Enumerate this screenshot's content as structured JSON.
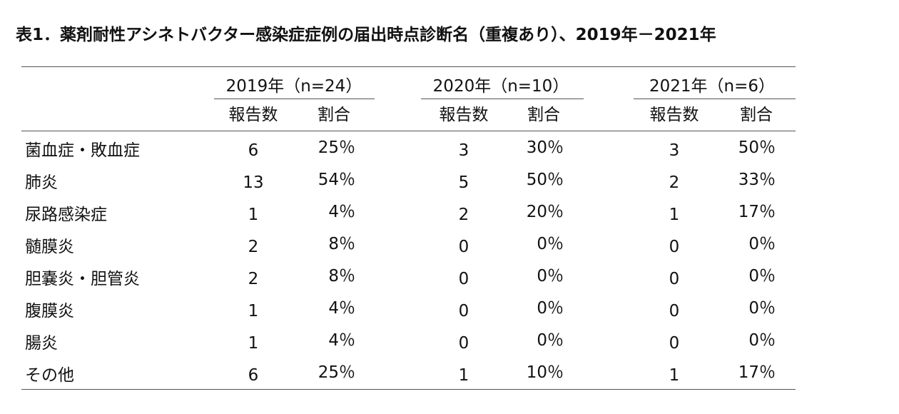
{
  "title": "表1．薬剤耐性アシネトバクター感染症症例の届出時点診断名（重複あり）、2019年－2021年",
  "table": {
    "groups": [
      {
        "label": "2019年（n=24）",
        "columns": [
          "報告数",
          "割合"
        ]
      },
      {
        "label": "2020年（n=10）",
        "columns": [
          "報告数",
          "割合"
        ]
      },
      {
        "label": "2021年（n=6）",
        "columns": [
          "報告数",
          "割合"
        ]
      }
    ],
    "rows": [
      {
        "label": "菌血症・敗血症",
        "cells": [
          6,
          "25％",
          3,
          "30％",
          3,
          "50％"
        ]
      },
      {
        "label": "肺炎",
        "cells": [
          13,
          "54％",
          5,
          "50％",
          2,
          "33％"
        ]
      },
      {
        "label": "尿路感染症",
        "cells": [
          1,
          "4％",
          2,
          "20％",
          1,
          "17％"
        ]
      },
      {
        "label": "髄膜炎",
        "cells": [
          2,
          "8％",
          0,
          "0％",
          0,
          "0％"
        ]
      },
      {
        "label": "胆嚢炎・胆管炎",
        "cells": [
          2,
          "8％",
          0,
          "0％",
          0,
          "0％"
        ]
      },
      {
        "label": "腹膜炎",
        "cells": [
          1,
          "4％",
          0,
          "0％",
          0,
          "0％"
        ]
      },
      {
        "label": "腸炎",
        "cells": [
          1,
          "4％",
          0,
          "0％",
          0,
          "0％"
        ]
      },
      {
        "label": "その他",
        "cells": [
          6,
          "25％",
          1,
          "10％",
          1,
          "17％"
        ]
      }
    ]
  }
}
